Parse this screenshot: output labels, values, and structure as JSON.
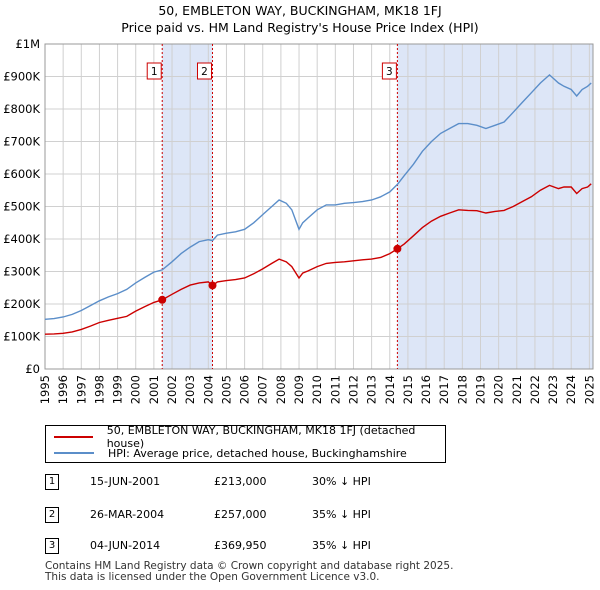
{
  "chart_data": {
    "type": "line",
    "title": "50, EMBLETON WAY, BUCKINGHAM, MK18 1FJ",
    "subtitle": "Price paid vs. HM Land Registry's House Price Index (HPI)",
    "xlim": [
      1995,
      2025.2
    ],
    "ylim": [
      0,
      1000000
    ],
    "y_ticks": [
      {
        "value": 0,
        "label": "£0"
      },
      {
        "value": 100000,
        "label": "£100K"
      },
      {
        "value": 200000,
        "label": "£200K"
      },
      {
        "value": 300000,
        "label": "£300K"
      },
      {
        "value": 400000,
        "label": "£400K"
      },
      {
        "value": 500000,
        "label": "£500K"
      },
      {
        "value": 600000,
        "label": "£600K"
      },
      {
        "value": 700000,
        "label": "£700K"
      },
      {
        "value": 800000,
        "label": "£800K"
      },
      {
        "value": 900000,
        "label": "£900K"
      },
      {
        "value": 1000000,
        "label": "£1M"
      }
    ],
    "x_ticks": [
      "1995",
      "1996",
      "1997",
      "1998",
      "1999",
      "2000",
      "2001",
      "2002",
      "2003",
      "2004",
      "2005",
      "2006",
      "2007",
      "2008",
      "2009",
      "2010",
      "2011",
      "2012",
      "2013",
      "2014",
      "2015",
      "2016",
      "2017",
      "2018",
      "2019",
      "2020",
      "2021",
      "2022",
      "2023",
      "2024",
      "2025"
    ],
    "grid": true,
    "series": [
      {
        "name": "50, EMBLETON WAY, BUCKINGHAM, MK18 1FJ (detached house)",
        "color": "#cc0000",
        "x": [
          1995.0,
          1995.5,
          1996.0,
          1996.5,
          1997.0,
          1997.5,
          1998.0,
          1998.5,
          1999.0,
          1999.5,
          2000.0,
          2000.5,
          2001.0,
          2001.46,
          2002.0,
          2002.5,
          2003.0,
          2003.5,
          2004.0,
          2004.23,
          2004.5,
          2005.0,
          2005.5,
          2006.0,
          2006.5,
          2007.0,
          2007.5,
          2007.9,
          2008.3,
          2008.6,
          2009.0,
          2009.2,
          2009.5,
          2010.0,
          2010.5,
          2011.0,
          2011.5,
          2012.0,
          2012.5,
          2013.0,
          2013.5,
          2014.0,
          2014.42,
          2014.8,
          2015.3,
          2015.8,
          2016.3,
          2016.8,
          2017.3,
          2017.8,
          2018.3,
          2018.8,
          2019.3,
          2019.8,
          2020.3,
          2020.8,
          2021.3,
          2021.8,
          2022.3,
          2022.8,
          2023.3,
          2023.6,
          2024.0,
          2024.3,
          2024.6,
          2024.9,
          2025.1
        ],
        "values": [
          107000,
          108000,
          110000,
          114000,
          122000,
          132000,
          143000,
          150000,
          156000,
          162000,
          178000,
          192000,
          205000,
          213000,
          230000,
          245000,
          258000,
          265000,
          268000,
          257000,
          268000,
          272000,
          275000,
          280000,
          293000,
          308000,
          325000,
          338000,
          330000,
          315000,
          280000,
          295000,
          302000,
          315000,
          325000,
          328000,
          330000,
          333000,
          336000,
          338000,
          343000,
          355000,
          369950,
          385000,
          410000,
          435000,
          455000,
          470000,
          480000,
          490000,
          488000,
          487000,
          480000,
          485000,
          488000,
          500000,
          515000,
          530000,
          550000,
          565000,
          555000,
          560000,
          560000,
          540000,
          555000,
          560000,
          570000
        ]
      },
      {
        "name": "HPI: Average price, detached house, Buckinghamshire",
        "color": "#5b8ec9",
        "x": [
          1995.0,
          1995.5,
          1996.0,
          1996.5,
          1997.0,
          1997.5,
          1998.0,
          1998.5,
          1999.0,
          1999.5,
          2000.0,
          2000.5,
          2001.0,
          2001.46,
          2002.0,
          2002.5,
          2003.0,
          2003.5,
          2004.0,
          2004.23,
          2004.5,
          2005.0,
          2005.5,
          2006.0,
          2006.5,
          2007.0,
          2007.5,
          2007.9,
          2008.3,
          2008.6,
          2009.0,
          2009.2,
          2009.5,
          2010.0,
          2010.5,
          2011.0,
          2011.5,
          2012.0,
          2012.5,
          2013.0,
          2013.5,
          2014.0,
          2014.42,
          2014.8,
          2015.3,
          2015.8,
          2016.3,
          2016.8,
          2017.3,
          2017.8,
          2018.3,
          2018.8,
          2019.3,
          2019.8,
          2020.3,
          2020.8,
          2021.3,
          2021.8,
          2022.3,
          2022.8,
          2023.3,
          2023.6,
          2024.0,
          2024.3,
          2024.6,
          2024.9,
          2025.1
        ],
        "values": [
          153000,
          155000,
          160000,
          168000,
          180000,
          195000,
          210000,
          222000,
          232000,
          245000,
          265000,
          282000,
          298000,
          305000,
          330000,
          355000,
          375000,
          392000,
          398000,
          395000,
          412000,
          418000,
          422000,
          430000,
          450000,
          475000,
          500000,
          520000,
          510000,
          490000,
          430000,
          450000,
          465000,
          490000,
          505000,
          505000,
          510000,
          512000,
          515000,
          520000,
          530000,
          545000,
          568000,
          595000,
          630000,
          670000,
          700000,
          725000,
          740000,
          755000,
          755000,
          750000,
          740000,
          750000,
          760000,
          790000,
          820000,
          850000,
          880000,
          905000,
          880000,
          870000,
          860000,
          840000,
          860000,
          870000,
          880000
        ]
      }
    ],
    "sales": [
      {
        "label": "1",
        "x": 2001.46,
        "value": 213000
      },
      {
        "label": "2",
        "x": 2004.23,
        "value": 257000
      },
      {
        "label": "3",
        "x": 2014.42,
        "value": 369950
      }
    ],
    "shaded_periods": [
      [
        2001.46,
        2004.23
      ],
      [
        2014.42,
        2025.2
      ]
    ]
  },
  "legend": {
    "property_label": "50, EMBLETON WAY, BUCKINGHAM, MK18 1FJ (detached house)",
    "hpi_label": "HPI: Average price, detached house, Buckinghamshire"
  },
  "transactions": [
    {
      "num": "1",
      "date": "15-JUN-2001",
      "price": "£213,000",
      "delta": "30% ↓ HPI"
    },
    {
      "num": "2",
      "date": "26-MAR-2004",
      "price": "£257,000",
      "delta": "35% ↓ HPI"
    },
    {
      "num": "3",
      "date": "04-JUN-2014",
      "price": "£369,950",
      "delta": "35% ↓ HPI"
    }
  ],
  "footer": {
    "line1": "Contains HM Land Registry data © Crown copyright and database right 2025.",
    "line2": "This data is licensed under the Open Government Licence v3.0."
  },
  "colors": {
    "property": "#cc0000",
    "hpi": "#5b8ec9",
    "shade": "#dde6f7",
    "grid": "#d0d0d0"
  }
}
